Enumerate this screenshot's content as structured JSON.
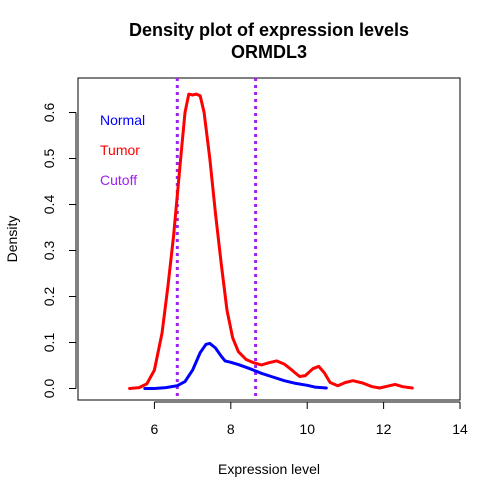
{
  "chart_data": {
    "type": "line",
    "title": "Density plot of expression levels",
    "subtitle": "ORMDL3",
    "xlabel": "Expression level",
    "ylabel": "Density",
    "xlim": [
      4,
      14
    ],
    "ylim": [
      -0.025,
      0.675
    ],
    "xticks": [
      6,
      8,
      10,
      12,
      14
    ],
    "yticks": [
      0.0,
      0.1,
      0.2,
      0.3,
      0.4,
      0.5,
      0.6
    ],
    "ytick_labels": [
      "0.0",
      "0.1",
      "0.2",
      "0.3",
      "0.4",
      "0.5",
      "0.6"
    ],
    "grid": false,
    "legend_position": "top-left",
    "legend": [
      {
        "label": "Normal",
        "color": "#0000FF"
      },
      {
        "label": "Tumor",
        "color": "#FF0000"
      },
      {
        "label": "Cutoff",
        "color": "#A020F0"
      }
    ],
    "series": [
      {
        "name": "Normal",
        "color": "#0000FF",
        "points": [
          [
            5.75,
            0.0
          ],
          [
            6.0,
            0.0
          ],
          [
            6.3,
            0.002
          ],
          [
            6.6,
            0.006
          ],
          [
            6.8,
            0.015
          ],
          [
            7.0,
            0.04
          ],
          [
            7.2,
            0.078
          ],
          [
            7.35,
            0.096
          ],
          [
            7.45,
            0.098
          ],
          [
            7.6,
            0.088
          ],
          [
            7.75,
            0.07
          ],
          [
            7.85,
            0.06
          ],
          [
            8.0,
            0.057
          ],
          [
            8.2,
            0.052
          ],
          [
            8.5,
            0.043
          ],
          [
            8.8,
            0.033
          ],
          [
            9.1,
            0.025
          ],
          [
            9.4,
            0.017
          ],
          [
            9.7,
            0.011
          ],
          [
            10.0,
            0.007
          ],
          [
            10.2,
            0.003
          ],
          [
            10.5,
            0.001
          ]
        ]
      },
      {
        "name": "Tumor",
        "color": "#FF0000",
        "points": [
          [
            5.35,
            0.0
          ],
          [
            5.6,
            0.002
          ],
          [
            5.8,
            0.01
          ],
          [
            6.0,
            0.04
          ],
          [
            6.2,
            0.12
          ],
          [
            6.35,
            0.22
          ],
          [
            6.5,
            0.33
          ],
          [
            6.6,
            0.42
          ],
          [
            6.7,
            0.51
          ],
          [
            6.8,
            0.6
          ],
          [
            6.9,
            0.64
          ],
          [
            7.0,
            0.638
          ],
          [
            7.1,
            0.64
          ],
          [
            7.2,
            0.636
          ],
          [
            7.3,
            0.6
          ],
          [
            7.45,
            0.5
          ],
          [
            7.6,
            0.38
          ],
          [
            7.75,
            0.27
          ],
          [
            7.9,
            0.17
          ],
          [
            8.05,
            0.11
          ],
          [
            8.2,
            0.08
          ],
          [
            8.4,
            0.063
          ],
          [
            8.6,
            0.056
          ],
          [
            8.8,
            0.051
          ],
          [
            9.0,
            0.056
          ],
          [
            9.2,
            0.06
          ],
          [
            9.4,
            0.053
          ],
          [
            9.6,
            0.04
          ],
          [
            9.8,
            0.026
          ],
          [
            9.95,
            0.028
          ],
          [
            10.15,
            0.043
          ],
          [
            10.3,
            0.048
          ],
          [
            10.45,
            0.034
          ],
          [
            10.6,
            0.013
          ],
          [
            10.8,
            0.006
          ],
          [
            11.0,
            0.013
          ],
          [
            11.2,
            0.017
          ],
          [
            11.45,
            0.012
          ],
          [
            11.7,
            0.004
          ],
          [
            11.9,
            0.001
          ],
          [
            12.1,
            0.005
          ],
          [
            12.3,
            0.009
          ],
          [
            12.5,
            0.004
          ],
          [
            12.75,
            0.001
          ]
        ]
      }
    ],
    "cutoffs": [
      6.6,
      8.65
    ],
    "cutoff_color": "#A020F0"
  }
}
